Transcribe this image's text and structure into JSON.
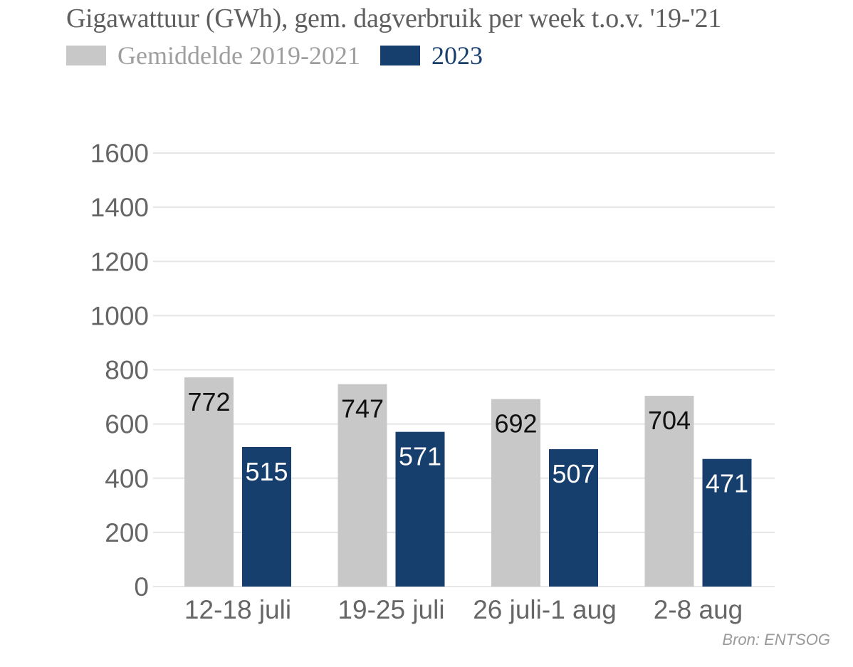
{
  "colors": {
    "series_avg": "#c8c8c8",
    "series_2023": "#173f6e",
    "grid": "#e6e6e6",
    "tick_text": "#666666",
    "label_dark": "#111111",
    "label_light": "#ffffff",
    "legend_avg_text": "#9e9e9e",
    "legend_2023_text": "#173f6e"
  },
  "chart_data": {
    "type": "bar",
    "title": "Gigawattuur (GWh), gem. dagverbruik per week t.o.v. '19-'21",
    "categories": [
      "12-18 juli",
      "19-25 juli",
      "26 juli-1 aug",
      "2-8 aug"
    ],
    "series": [
      {
        "name": "Gemiddelde 2019-2021",
        "values": [
          772,
          747,
          692,
          704
        ]
      },
      {
        "name": "2023",
        "values": [
          515,
          571,
          507,
          471
        ]
      }
    ],
    "ylim": [
      0,
      1600
    ],
    "yticks": [
      0,
      200,
      400,
      600,
      800,
      1000,
      1200,
      1400,
      1600
    ],
    "grid": true,
    "legend": "top-left",
    "xlabel": "",
    "ylabel": ""
  },
  "source": "Bron: ENTSOG"
}
